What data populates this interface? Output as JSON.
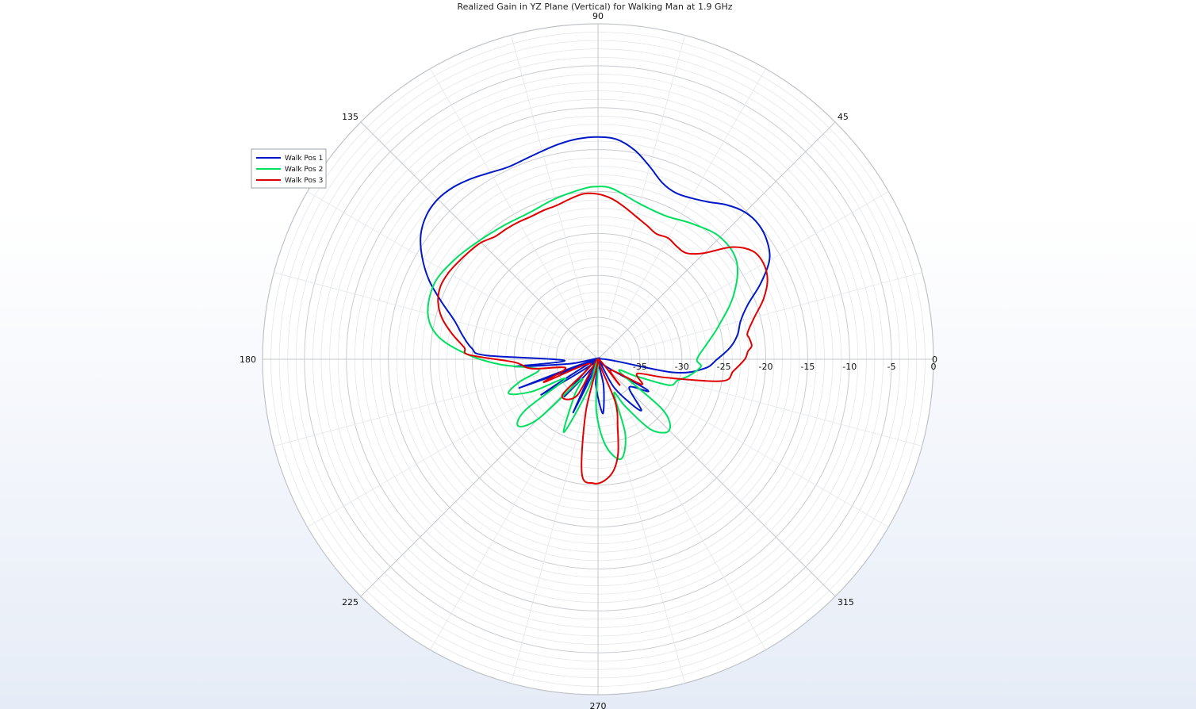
{
  "chart_data": {
    "type": "polar-line",
    "title": "Realized Gain in YZ Plane (Vertical) for Walking Man at 1.9 GHz",
    "angle_unit": "deg",
    "angle_labels": [
      "0",
      "45",
      "90",
      "135",
      "180",
      "225",
      "270",
      "315"
    ],
    "angle_label_values": [
      0,
      45,
      90,
      135,
      180,
      225,
      270,
      315
    ],
    "r_range": [
      -40,
      0
    ],
    "r_tick_values": [
      -35,
      -30,
      -25,
      -20,
      -15,
      -10,
      -5,
      0
    ],
    "r_tick_labels": [
      "-35",
      "-30",
      "-25",
      "-20",
      "-15",
      "-10",
      "-5",
      "0"
    ],
    "grid": true,
    "legend_position": "left",
    "series": [
      {
        "name": "Walk Pos 1",
        "color": "#0018c8",
        "points": [
          [
            0,
            -25.8
          ],
          [
            5,
            -24.2
          ],
          [
            10,
            -23.1
          ],
          [
            15,
            -22.4
          ],
          [
            20,
            -21
          ],
          [
            25,
            -18.6
          ],
          [
            30,
            -16.4
          ],
          [
            35,
            -15.4
          ],
          [
            40,
            -15
          ],
          [
            45,
            -15.2
          ],
          [
            50,
            -16
          ],
          [
            55,
            -17.1
          ],
          [
            60,
            -17.8
          ],
          [
            65,
            -18.1
          ],
          [
            70,
            -17.6
          ],
          [
            75,
            -16.2
          ],
          [
            80,
            -14.7
          ],
          [
            85,
            -13.7
          ],
          [
            90,
            -13.5
          ],
          [
            95,
            -13.6
          ],
          [
            100,
            -13.9
          ],
          [
            105,
            -14.3
          ],
          [
            110,
            -14.6
          ],
          [
            115,
            -14.7
          ],
          [
            120,
            -14.3
          ],
          [
            125,
            -13.7
          ],
          [
            130,
            -13.2
          ],
          [
            135,
            -13
          ],
          [
            140,
            -13.3
          ],
          [
            145,
            -14.2
          ],
          [
            150,
            -15.8
          ],
          [
            155,
            -17.8
          ],
          [
            160,
            -20.2
          ],
          [
            165,
            -22.3
          ],
          [
            170,
            -23.6
          ],
          [
            175,
            -24.9
          ],
          [
            178,
            -26.6
          ],
          [
            182,
            -36
          ],
          [
            185,
            -30
          ],
          [
            189,
            -36.5
          ],
          [
            195,
            -40
          ],
          [
            200,
            -30
          ],
          [
            205,
            -40
          ],
          [
            212,
            -32
          ],
          [
            220,
            -40
          ],
          [
            228,
            -34
          ],
          [
            235,
            -40
          ],
          [
            245,
            -33
          ],
          [
            252,
            -40
          ],
          [
            265,
            -37
          ],
          [
            275,
            -33.5
          ],
          [
            282,
            -36.8
          ],
          [
            290,
            -40
          ],
          [
            300,
            -36
          ],
          [
            310,
            -32
          ],
          [
            318,
            -35
          ],
          [
            328,
            -33
          ],
          [
            340,
            -40
          ],
          [
            350,
            -31
          ],
          [
            355,
            -27.3
          ],
          [
            360,
            -25.8
          ]
        ]
      },
      {
        "name": "Walk Pos 2",
        "color": "#00e060",
        "points": [
          [
            0,
            -28.2
          ],
          [
            8,
            -26.9
          ],
          [
            15,
            -25.2
          ],
          [
            25,
            -22.2
          ],
          [
            35,
            -19.8
          ],
          [
            45,
            -19.4
          ],
          [
            55,
            -20.3
          ],
          [
            65,
            -21.1
          ],
          [
            75,
            -20.8
          ],
          [
            85,
            -19.6
          ],
          [
            90,
            -19.4
          ],
          [
            95,
            -19.6
          ],
          [
            105,
            -20.2
          ],
          [
            115,
            -20.7
          ],
          [
            125,
            -20.5
          ],
          [
            135,
            -20
          ],
          [
            145,
            -19.2
          ],
          [
            155,
            -18.5
          ],
          [
            165,
            -19
          ],
          [
            172,
            -20.8
          ],
          [
            178,
            -24.5
          ],
          [
            183,
            -28.3
          ],
          [
            187,
            -31.8
          ],
          [
            191,
            -32.8
          ],
          [
            196,
            -30.3
          ],
          [
            201,
            -28.6
          ],
          [
            206,
            -31.2
          ],
          [
            211,
            -35.5
          ],
          [
            215,
            -29.4
          ],
          [
            220,
            -27.6
          ],
          [
            225,
            -30
          ],
          [
            230,
            -36.8
          ],
          [
            237,
            -34.8
          ],
          [
            245,
            -30.4
          ],
          [
            252,
            -36.3
          ],
          [
            260,
            -40
          ],
          [
            268,
            -34
          ],
          [
            275,
            -29.7
          ],
          [
            283,
            -27.8
          ],
          [
            290,
            -30.5
          ],
          [
            295,
            -35.5
          ],
          [
            300,
            -33.5
          ],
          [
            307,
            -29.5
          ],
          [
            315,
            -28
          ],
          [
            322,
            -30.2
          ],
          [
            330,
            -37
          ],
          [
            336,
            -35
          ],
          [
            340,
            -31
          ],
          [
            345,
            -30.2
          ],
          [
            350,
            -28.9
          ],
          [
            356,
            -27.7
          ],
          [
            360,
            -28.2
          ]
        ]
      },
      {
        "name": "Walk Pos 3",
        "color": "#e00000",
        "points": [
          [
            0,
            -22.5
          ],
          [
            3,
            -22.1
          ],
          [
            5,
            -21.6
          ],
          [
            8,
            -21.8
          ],
          [
            10,
            -21.9
          ],
          [
            15,
            -20.7
          ],
          [
            20,
            -19
          ],
          [
            25,
            -17.7
          ],
          [
            30,
            -17.2
          ],
          [
            35,
            -17.5
          ],
          [
            40,
            -19.2
          ],
          [
            45,
            -22.1
          ],
          [
            50,
            -23.5
          ],
          [
            55,
            -23.6
          ],
          [
            60,
            -23.3
          ],
          [
            65,
            -23.5
          ],
          [
            70,
            -23
          ],
          [
            75,
            -22.4
          ],
          [
            80,
            -21.6
          ],
          [
            85,
            -20.8
          ],
          [
            90,
            -20.3
          ],
          [
            95,
            -20.2
          ],
          [
            100,
            -20.6
          ],
          [
            105,
            -21
          ],
          [
            110,
            -21.1
          ],
          [
            115,
            -21.2
          ],
          [
            120,
            -21.1
          ],
          [
            125,
            -21
          ],
          [
            130,
            -20.9
          ],
          [
            135,
            -20.3
          ],
          [
            140,
            -20
          ],
          [
            145,
            -19.7
          ],
          [
            150,
            -19.4
          ],
          [
            155,
            -19.3
          ],
          [
            160,
            -19.7
          ],
          [
            165,
            -20.7
          ],
          [
            170,
            -22.3
          ],
          [
            175,
            -24
          ],
          [
            178,
            -24.6
          ],
          [
            182,
            -30
          ],
          [
            188,
            -32
          ],
          [
            195,
            -36
          ],
          [
            203,
            -33
          ],
          [
            212,
            -39
          ],
          [
            225,
            -34
          ],
          [
            240,
            -35
          ],
          [
            252,
            -40
          ],
          [
            257,
            -33.5
          ],
          [
            262,
            -26.2
          ],
          [
            268,
            -25.2
          ],
          [
            273,
            -25.5
          ],
          [
            278,
            -26.6
          ],
          [
            282,
            -28.5
          ],
          [
            286,
            -31.5
          ],
          [
            292,
            -34.5
          ],
          [
            300,
            -40
          ],
          [
            310,
            -36
          ],
          [
            320,
            -38
          ],
          [
            330,
            -34
          ],
          [
            340,
            -35
          ],
          [
            345,
            -31.5
          ],
          [
            350,
            -25
          ],
          [
            355,
            -23.8
          ],
          [
            360,
            -22.5
          ]
        ]
      }
    ]
  }
}
